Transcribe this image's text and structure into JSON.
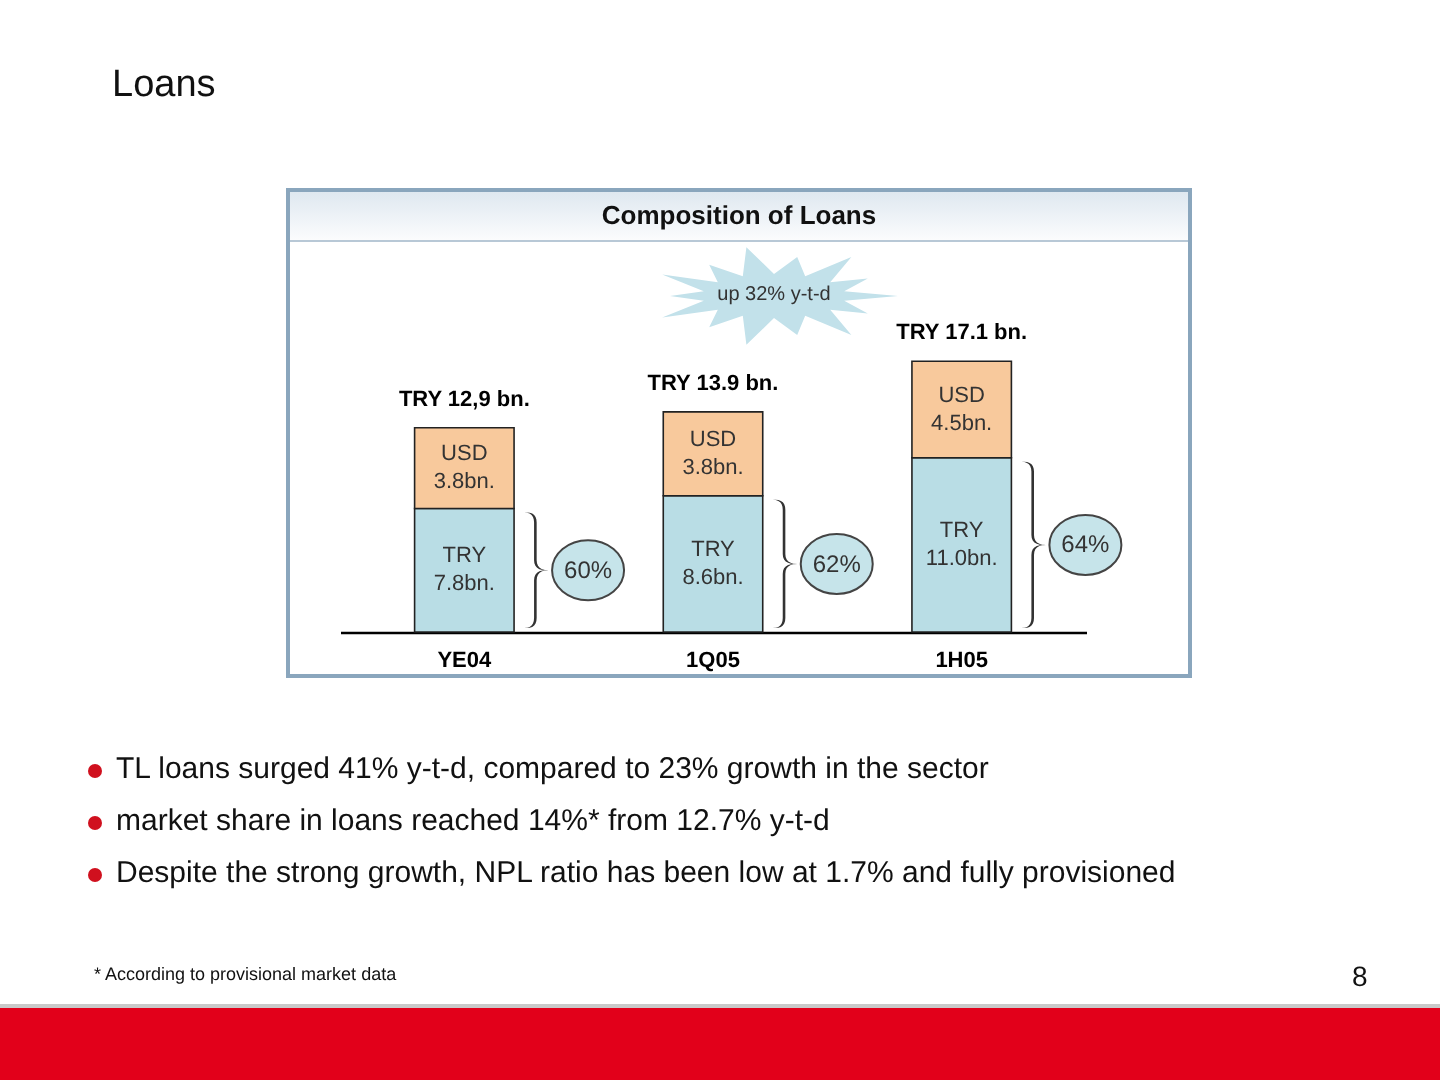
{
  "chart_data": {
    "type": "bar",
    "title": "Loans",
    "subtitle": "Composition of Loans",
    "categories": [
      "YE04",
      "1Q05",
      "1H05"
    ],
    "stacked": true,
    "tick_labels": "x",
    "series": [
      {
        "name": "TRY",
        "color": "#b9dde5",
        "values": [
          7.8,
          8.6,
          11.0
        ],
        "value_labels": [
          "7.8bn.",
          "8.6bn.",
          "11.0bn."
        ]
      },
      {
        "name": "USD",
        "color": "#f8c99c",
        "values": [
          5.1,
          5.3,
          6.1
        ]
      }
    ],
    "totals": [
      "TRY 12,9 bn.",
      "TRY 13.9 bn.",
      "TRY 17.1 bn."
    ],
    "annotations": [
      "up 32% y-t-d",
      "3.8bn.",
      "3.8bn.",
      "4.5bn.",
      "60%",
      "62%",
      "64%",
      "TL loans surged 41% y-t-d, compared to 23% growth in the sector",
      "market share in loans reached 14%* from 12.7% y-t-d",
      "Despite the strong growth, NPL ratio has been low at 1.7% and fully provisioned",
      "* According to provisional market data",
      "8"
    ]
  }
}
